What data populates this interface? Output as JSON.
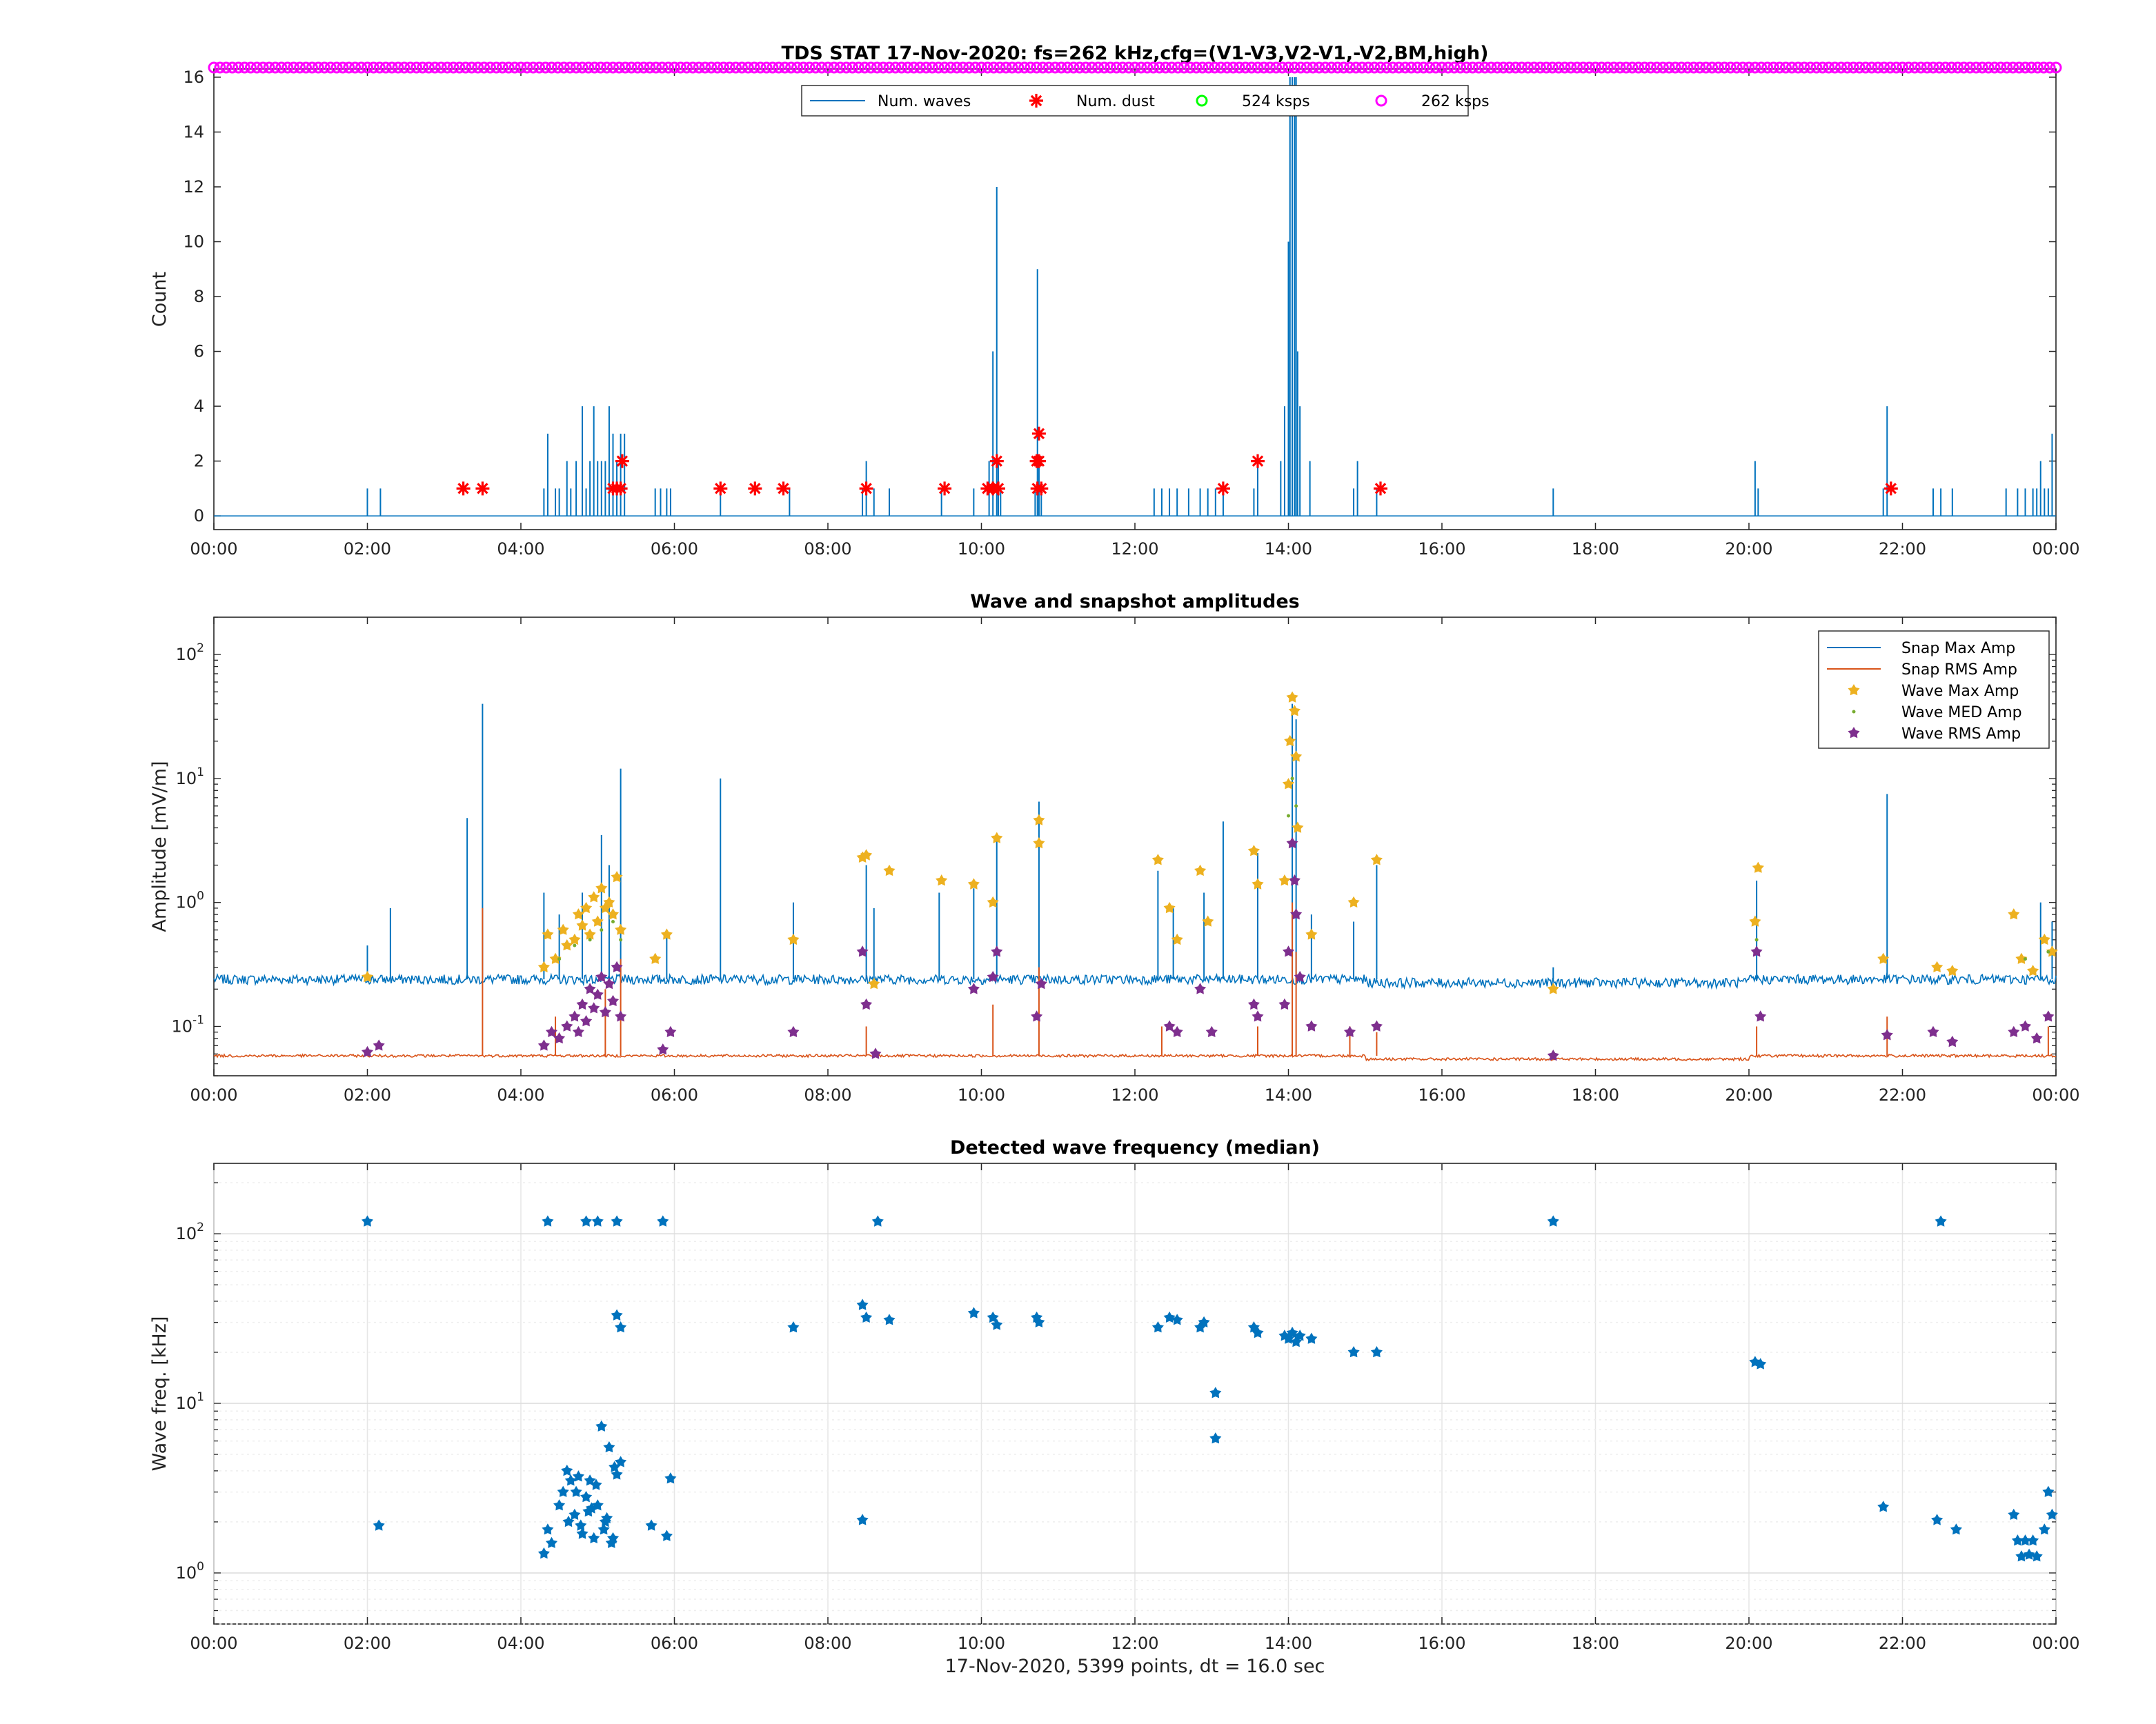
{
  "figure": {
    "footer": "17-Nov-2020, 5399 points, dt = 16.0 sec",
    "colors": {
      "waves": "#0072BD",
      "snap_rms": "#D95319",
      "wave_max": "#EDB120",
      "wave_rms": "#7E2F8E",
      "wave_med": "#77AC30",
      "dust": "#FF0000",
      "ksps524": "#00FF00",
      "ksps262": "#FF00FF"
    }
  },
  "chart_data": [
    {
      "type": "line",
      "title": "TDS STAT 17-Nov-2020: fs=262 kHz,cfg=(V1-V3,V2-V1,-V2,BM,high)",
      "xlabel": "",
      "ylabel": "Count",
      "xlim": [
        0,
        24
      ],
      "ylim": [
        -0.5,
        16.3
      ],
      "xticks": [
        "00:00",
        "02:00",
        "04:00",
        "06:00",
        "08:00",
        "10:00",
        "12:00",
        "14:00",
        "16:00",
        "18:00",
        "20:00",
        "22:00",
        "00:00"
      ],
      "yticks": [
        "0",
        "2",
        "4",
        "6",
        "8",
        "10",
        "12",
        "14",
        "16"
      ],
      "legend": [
        "Num. waves",
        "Num. dust",
        "524 ksps",
        "262 ksps"
      ],
      "legend_position": "top-center",
      "series": [
        {
          "name": "Num. waves",
          "style": "line",
          "x": [
            2.0,
            2.17,
            3.78,
            4.3,
            4.35,
            4.45,
            4.5,
            4.6,
            4.65,
            4.72,
            4.8,
            4.85,
            4.9,
            4.95,
            5.0,
            5.05,
            5.1,
            5.15,
            5.2,
            5.25,
            5.3,
            5.35,
            5.75,
            5.82,
            5.9,
            5.95,
            6.6,
            7.5,
            8.45,
            8.5,
            8.6,
            8.8,
            9.48,
            9.9,
            10.1,
            10.15,
            10.2,
            10.22,
            10.25,
            10.7,
            10.73,
            10.75,
            10.78,
            12.25,
            12.35,
            12.45,
            12.55,
            12.7,
            12.85,
            12.95,
            13.05,
            13.15,
            13.55,
            13.6,
            13.9,
            13.95,
            14.0,
            14.02,
            14.05,
            14.08,
            14.1,
            14.12,
            14.15,
            14.28,
            14.85,
            14.9,
            15.15,
            17.45,
            20.08,
            20.12,
            21.75,
            21.8,
            22.4,
            22.5,
            22.65,
            23.35,
            23.5,
            23.6,
            23.7,
            23.75,
            23.8,
            23.85,
            23.9,
            23.95
          ],
          "y": [
            1,
            1,
            0,
            1,
            3,
            1,
            1,
            2,
            1,
            2,
            4,
            1,
            2,
            4,
            2,
            2,
            2,
            4,
            3,
            2,
            3,
            3,
            1,
            1,
            1,
            1,
            1,
            1,
            1,
            2,
            1,
            1,
            1,
            1,
            2,
            6,
            12,
            2,
            1,
            1,
            9,
            2,
            1,
            1,
            1,
            1,
            1,
            1,
            1,
            1,
            1,
            1,
            1,
            2,
            2,
            4,
            10,
            16,
            16,
            16,
            16,
            6,
            4,
            2,
            1,
            2,
            1,
            1,
            2,
            1,
            1,
            4,
            1,
            1,
            1,
            1,
            1,
            1,
            1,
            1,
            2,
            1,
            1,
            3
          ]
        },
        {
          "name": "Num. dust",
          "style": "asterisk",
          "x": [
            3.25,
            3.5,
            5.2,
            5.25,
            5.3,
            5.32,
            6.6,
            7.05,
            7.42,
            8.5,
            9.52,
            10.08,
            10.15,
            10.2,
            10.22,
            10.73,
            10.75,
            10.78,
            10.75,
            10.72,
            13.15,
            13.6,
            15.2,
            21.85
          ],
          "y": [
            1,
            1,
            1,
            1,
            1,
            2,
            1,
            1,
            1,
            1,
            1,
            1,
            1,
            2,
            1,
            1,
            2,
            1,
            3,
            2,
            1,
            2,
            1,
            1
          ]
        },
        {
          "name": "262 ksps",
          "style": "marker-band",
          "x": [
            0,
            24
          ],
          "y": [
            16.3,
            16.3
          ]
        }
      ]
    },
    {
      "type": "line",
      "title": "Wave and snapshot amplitudes",
      "xlabel": "",
      "ylabel": "Amplitude [mV/m]",
      "xlim": [
        0,
        24
      ],
      "ylim": [
        0.04,
        200
      ],
      "yscale": "log",
      "xticks": [
        "00:00",
        "02:00",
        "04:00",
        "06:00",
        "08:00",
        "10:00",
        "12:00",
        "14:00",
        "16:00",
        "18:00",
        "20:00",
        "22:00",
        "00:00"
      ],
      "yticks": [
        {
          "base": "10",
          "exp": "-1",
          "value": 0.1
        },
        {
          "base": "10",
          "exp": "0",
          "value": 1
        },
        {
          "base": "10",
          "exp": "1",
          "value": 10
        },
        {
          "base": "10",
          "exp": "2",
          "value": 100
        }
      ],
      "legend": [
        "Snap Max Amp",
        "Snap RMS Amp",
        "Wave Max Amp",
        "Wave MED Amp",
        "Wave RMS Amp"
      ],
      "legend_position": "top-right",
      "series": [
        {
          "name": "Snap Max Amp",
          "style": "line",
          "baseline": 0.24,
          "spikes": {
            "x": [
              2.0,
              2.3,
              3.3,
              3.5,
              4.3,
              4.5,
              4.8,
              5.05,
              5.15,
              5.3,
              5.9,
              6.6,
              7.55,
              8.5,
              8.6,
              9.45,
              9.9,
              10.2,
              10.75,
              12.3,
              12.5,
              12.9,
              13.15,
              13.6,
              14.05,
              14.1,
              14.3,
              14.85,
              15.15,
              17.45,
              20.1,
              21.8,
              23.8,
              23.95
            ],
            "y": [
              0.45,
              0.9,
              4.8,
              40,
              1.2,
              0.8,
              1.2,
              3.5,
              2.0,
              12,
              0.6,
              10,
              1.0,
              2.0,
              0.9,
              1.2,
              1.3,
              3.2,
              6.5,
              1.8,
              0.9,
              1.2,
              4.5,
              2.5,
              40,
              30,
              0.8,
              0.7,
              2.0,
              0.3,
              1.5,
              7.5,
              1.0,
              0.7
            ]
          }
        },
        {
          "name": "Snap RMS Amp",
          "style": "line",
          "baseline": 0.058,
          "spikes": {
            "x": [
              3.5,
              4.45,
              5.1,
              5.3,
              8.5,
              10.15,
              10.75,
              12.35,
              13.6,
              14.05,
              14.1,
              14.8,
              15.15,
              20.1,
              21.8,
              23.9
            ],
            "y": [
              0.9,
              0.12,
              0.2,
              0.35,
              0.1,
              0.15,
              0.3,
              0.1,
              0.1,
              1.0,
              0.4,
              0.1,
              0.09,
              0.1,
              0.12,
              0.1
            ]
          }
        },
        {
          "name": "Wave Max Amp",
          "style": "star",
          "x": [
            2.0,
            4.3,
            4.35,
            4.45,
            4.55,
            4.6,
            4.7,
            4.75,
            4.8,
            4.85,
            4.9,
            4.95,
            5.0,
            5.05,
            5.1,
            5.15,
            5.2,
            5.25,
            5.3,
            5.75,
            5.9,
            7.55,
            8.45,
            8.5,
            8.6,
            8.8,
            9.48,
            9.9,
            10.15,
            10.2,
            10.75,
            10.75,
            12.3,
            12.45,
            12.55,
            12.85,
            12.95,
            13.55,
            13.6,
            13.95,
            14.0,
            14.02,
            14.05,
            14.08,
            14.1,
            14.12,
            14.3,
            14.85,
            15.15,
            17.45,
            20.08,
            20.12,
            21.75,
            22.45,
            22.65,
            23.45,
            23.55,
            23.7,
            23.85,
            23.95
          ],
          "y": [
            0.25,
            0.3,
            0.55,
            0.35,
            0.6,
            0.45,
            0.5,
            0.8,
            0.65,
            0.9,
            0.55,
            1.1,
            0.7,
            1.3,
            0.9,
            1.0,
            0.8,
            1.6,
            0.6,
            0.35,
            0.55,
            0.5,
            2.3,
            2.4,
            0.22,
            1.8,
            1.5,
            1.4,
            1.0,
            3.3,
            4.6,
            3.0,
            2.2,
            0.9,
            0.5,
            1.8,
            0.7,
            2.6,
            1.4,
            1.5,
            9.0,
            20,
            45,
            35,
            15,
            4.0,
            0.55,
            1.0,
            2.2,
            0.2,
            0.7,
            1.9,
            0.35,
            0.3,
            0.28,
            0.8,
            0.35,
            0.28,
            0.5,
            0.4
          ]
        },
        {
          "name": "Wave MED Amp",
          "style": "dot",
          "x": [
            4.5,
            4.7,
            4.9,
            5.05,
            5.2,
            5.3,
            14.0,
            14.05,
            14.1,
            20.1,
            23.6,
            23.9
          ],
          "y": [
            0.35,
            0.45,
            0.5,
            0.6,
            0.7,
            0.5,
            5.0,
            10.0,
            6.0,
            0.5,
            0.35,
            0.4
          ]
        },
        {
          "name": "Wave RMS Amp",
          "style": "star",
          "x": [
            2.0,
            2.15,
            4.3,
            4.4,
            4.5,
            4.6,
            4.7,
            4.75,
            4.8,
            4.85,
            4.9,
            4.95,
            5.0,
            5.05,
            5.1,
            5.15,
            5.2,
            5.25,
            5.3,
            5.85,
            5.95,
            7.55,
            8.45,
            8.5,
            8.62,
            9.9,
            10.15,
            10.2,
            10.72,
            10.78,
            12.45,
            12.55,
            12.85,
            13.0,
            13.55,
            13.6,
            13.95,
            14.0,
            14.05,
            14.08,
            14.1,
            14.15,
            14.3,
            14.8,
            15.15,
            17.45,
            20.1,
            20.15,
            21.8,
            22.4,
            22.65,
            23.45,
            23.6,
            23.75,
            23.9
          ],
          "y": [
            0.062,
            0.07,
            0.07,
            0.09,
            0.08,
            0.1,
            0.12,
            0.09,
            0.15,
            0.11,
            0.2,
            0.14,
            0.18,
            0.25,
            0.13,
            0.22,
            0.16,
            0.3,
            0.12,
            0.065,
            0.09,
            0.09,
            0.4,
            0.15,
            0.06,
            0.2,
            0.25,
            0.4,
            0.12,
            0.22,
            0.1,
            0.09,
            0.2,
            0.09,
            0.15,
            0.12,
            0.15,
            0.4,
            3.0,
            1.5,
            0.8,
            0.25,
            0.1,
            0.09,
            0.1,
            0.058,
            0.4,
            0.12,
            0.085,
            0.09,
            0.075,
            0.09,
            0.1,
            0.08,
            0.12
          ]
        }
      ]
    },
    {
      "type": "scatter",
      "title": "Detected wave frequency (median)",
      "xlabel": "17-Nov-2020, 5399 points, dt = 16.0 sec",
      "ylabel": "Wave freq. [kHz]",
      "xlim": [
        0,
        24
      ],
      "ylim": [
        0.5,
        260
      ],
      "yscale": "log",
      "grid": true,
      "xticks": [
        "00:00",
        "02:00",
        "04:00",
        "06:00",
        "08:00",
        "10:00",
        "12:00",
        "14:00",
        "16:00",
        "18:00",
        "20:00",
        "22:00",
        "00:00"
      ],
      "yticks": [
        {
          "base": "10",
          "exp": "0",
          "value": 1
        },
        {
          "base": "10",
          "exp": "1",
          "value": 10
        },
        {
          "base": "10",
          "exp": "2",
          "value": 100
        }
      ],
      "series": [
        {
          "name": "",
          "x": [
            2.0,
            4.35,
            4.85,
            5.0,
            5.25,
            5.85,
            8.65,
            17.45,
            22.5,
            2.15,
            5.25,
            5.3,
            7.55,
            8.45,
            8.5,
            8.8,
            9.9,
            10.15,
            10.2,
            10.75,
            10.72,
            12.3,
            12.45,
            12.55,
            12.85,
            12.9,
            13.55,
            13.6,
            13.95,
            14.0,
            14.05,
            14.1,
            14.15,
            14.3,
            14.85,
            15.15,
            13.05,
            13.05,
            20.08,
            20.15,
            8.45,
            4.3,
            4.35,
            4.4,
            4.5,
            4.55,
            4.6,
            4.65,
            4.7,
            4.75,
            4.8,
            4.85,
            4.9,
            4.95,
            5.0,
            5.05,
            5.1,
            5.15,
            5.2,
            5.25,
            5.3,
            4.62,
            4.78,
            4.88,
            4.98,
            5.08,
            5.18,
            5.22,
            4.72,
            4.92,
            5.12,
            5.7,
            5.9,
            5.95,
            21.75,
            22.45,
            22.7,
            23.45,
            23.5,
            23.55,
            23.6,
            23.65,
            23.7,
            23.75,
            23.85,
            23.9,
            23.95
          ],
          "y": [
            118,
            118,
            118,
            118,
            118,
            118,
            118,
            118,
            118,
            1.9,
            33,
            28,
            28,
            38,
            32,
            31,
            34,
            32,
            29,
            30,
            32,
            28,
            32,
            31,
            28,
            30,
            28,
            26,
            25,
            24,
            26,
            23,
            25,
            24,
            20,
            20,
            11.5,
            6.2,
            17.5,
            17,
            2.05,
            1.3,
            1.8,
            1.5,
            2.5,
            3.0,
            4.0,
            3.5,
            2.2,
            3.7,
            1.7,
            2.8,
            3.5,
            1.6,
            2.5,
            7.3,
            2.0,
            5.5,
            1.6,
            3.8,
            4.5,
            2.0,
            1.9,
            2.3,
            3.3,
            1.8,
            1.5,
            4.2,
            3.0,
            2.4,
            2.1,
            1.9,
            1.65,
            3.6,
            2.45,
            2.05,
            1.8,
            2.2,
            1.55,
            1.25,
            1.55,
            1.28,
            1.55,
            1.25,
            1.8,
            3.0,
            2.2
          ]
        }
      ]
    }
  ]
}
